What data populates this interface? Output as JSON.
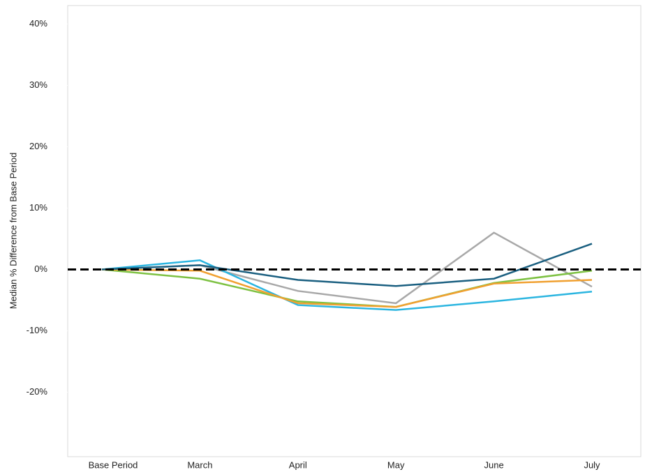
{
  "chart_data": {
    "type": "line",
    "y_label": "Median % Difference from Base Period",
    "categories": [
      "Base Period",
      "March",
      "April",
      "May",
      "June",
      "July"
    ],
    "series": [
      {
        "color": "#a8a8a8",
        "values": [
          0,
          0.7,
          -3.5,
          -5.5,
          6.0,
          -2.8
        ]
      },
      {
        "color": "#2bb5e0",
        "values": [
          0,
          1.5,
          -5.8,
          -6.6,
          -5.2,
          -3.6
        ]
      },
      {
        "color": "#7dc142",
        "values": [
          0,
          -1.5,
          -5.2,
          -6.1,
          -2.2,
          -0.2
        ]
      },
      {
        "color": "#f0a030",
        "values": [
          0,
          -0.2,
          -5.5,
          -6.1,
          -2.3,
          -1.7
        ]
      },
      {
        "color": "#1a5f80",
        "values": [
          0,
          0.7,
          -1.7,
          -2.7,
          -1.5,
          4.2
        ]
      }
    ],
    "reference_line": 0,
    "ylim": [
      -30.5,
      43
    ],
    "yticks": [
      {
        "value": -20,
        "label": "-20%"
      },
      {
        "value": -10,
        "label": "-10%"
      },
      {
        "value": 0,
        "label": "0%"
      },
      {
        "value": 10,
        "label": "10%"
      },
      {
        "value": 20,
        "label": "20%"
      },
      {
        "value": 30,
        "label": "30%"
      },
      {
        "value": 40,
        "label": "40%"
      }
    ]
  }
}
